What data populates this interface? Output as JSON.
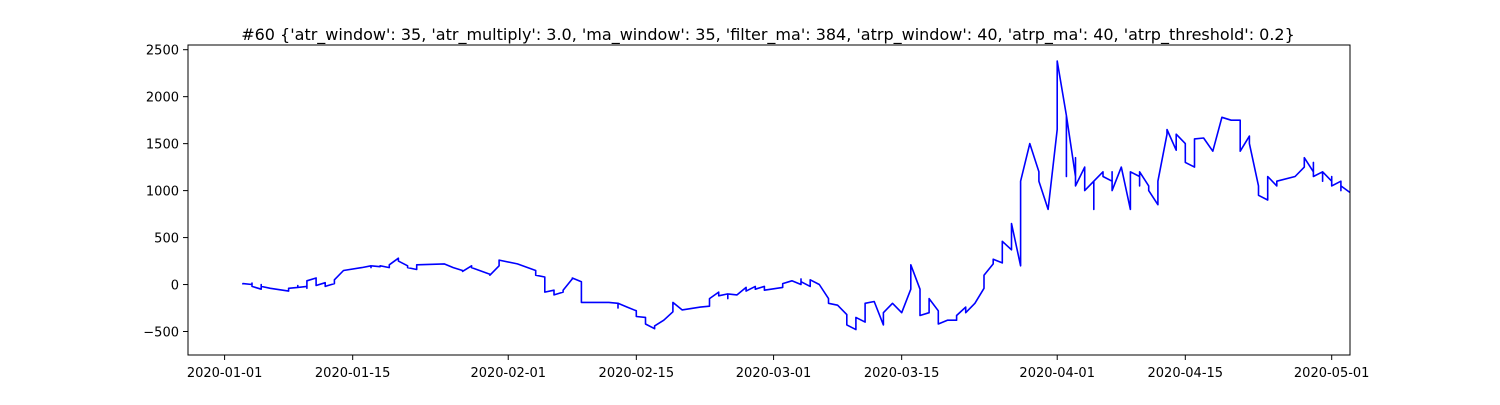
{
  "chart_data": {
    "type": "line",
    "title": "#60 {'atr_window': 35, 'atr_multiply': 3.0, 'ma_window': 35, 'filter_ma': 384, 'atrp_window': 40, 'atrp_ma': 40, 'atrp_threshold': 0.2}",
    "xlabel": "",
    "ylabel": "",
    "x_axis": "date",
    "xlim": [
      "2019-12-28",
      "2020-05-03"
    ],
    "ylim": [
      -750,
      2550
    ],
    "xticks": [
      "2020-01-01",
      "2020-01-15",
      "2020-02-01",
      "2020-02-15",
      "2020-03-01",
      "2020-03-15",
      "2020-04-01",
      "2020-04-15",
      "2020-05-01"
    ],
    "yticks": [
      -500,
      0,
      500,
      1000,
      1500,
      2000,
      2500
    ],
    "grid": false,
    "legend": "none",
    "series": [
      {
        "color": "#0000ff",
        "points": [
          [
            "2020-01-03",
            0
          ],
          [
            "2020-01-03",
            10
          ],
          [
            "2020-01-04",
            0
          ],
          [
            "2020-01-04",
            15
          ],
          [
            "2020-01-04",
            -20
          ],
          [
            "2020-01-05",
            -50
          ],
          [
            "2020-01-05",
            0
          ],
          [
            "2020-01-05",
            -20
          ],
          [
            "2020-01-06",
            -40
          ],
          [
            "2020-01-08",
            -70
          ],
          [
            "2020-01-08",
            -40
          ],
          [
            "2020-01-09",
            -30
          ],
          [
            "2020-01-09",
            -10
          ],
          [
            "2020-01-09",
            -30
          ],
          [
            "2020-01-10",
            -20
          ],
          [
            "2020-01-10",
            -40
          ],
          [
            "2020-01-10",
            20
          ],
          [
            "2020-01-10",
            40
          ],
          [
            "2020-01-11",
            70
          ],
          [
            "2020-01-11",
            -10
          ],
          [
            "2020-01-12",
            20
          ],
          [
            "2020-01-12",
            -20
          ],
          [
            "2020-01-13",
            10
          ],
          [
            "2020-01-13",
            50
          ],
          [
            "2020-01-14",
            150
          ],
          [
            "2020-01-16",
            180
          ],
          [
            "2020-01-17",
            200
          ],
          [
            "2020-01-17",
            180
          ],
          [
            "2020-01-17",
            200
          ],
          [
            "2020-01-18",
            190
          ],
          [
            "2020-01-18",
            200
          ],
          [
            "2020-01-19",
            180
          ],
          [
            "2020-01-19",
            210
          ],
          [
            "2020-01-20",
            280
          ],
          [
            "2020-01-20",
            250
          ],
          [
            "2020-01-21",
            200
          ],
          [
            "2020-01-21",
            180
          ],
          [
            "2020-01-22",
            160
          ],
          [
            "2020-01-22",
            210
          ],
          [
            "2020-01-25",
            220
          ],
          [
            "2020-01-26",
            180
          ],
          [
            "2020-01-27",
            150
          ],
          [
            "2020-01-27",
            140
          ],
          [
            "2020-01-28",
            200
          ],
          [
            "2020-01-28",
            180
          ],
          [
            "2020-01-30",
            110
          ],
          [
            "2020-01-30",
            100
          ],
          [
            "2020-01-31",
            200
          ],
          [
            "2020-01-31",
            260
          ],
          [
            "2020-02-02",
            220
          ],
          [
            "2020-02-04",
            150
          ],
          [
            "2020-02-04",
            100
          ],
          [
            "2020-02-05",
            80
          ],
          [
            "2020-02-05",
            -20
          ],
          [
            "2020-02-05",
            -80
          ],
          [
            "2020-02-06",
            -60
          ],
          [
            "2020-02-06",
            -110
          ],
          [
            "2020-02-07",
            -80
          ],
          [
            "2020-02-07",
            -60
          ],
          [
            "2020-02-08",
            60
          ],
          [
            "2020-02-08",
            70
          ],
          [
            "2020-02-09",
            30
          ],
          [
            "2020-02-09",
            -80
          ],
          [
            "2020-02-09",
            -190
          ],
          [
            "2020-02-12",
            -190
          ],
          [
            "2020-02-13",
            -200
          ],
          [
            "2020-02-13",
            -250
          ],
          [
            "2020-02-13",
            -200
          ],
          [
            "2020-02-14",
            -240
          ],
          [
            "2020-02-15",
            -280
          ],
          [
            "2020-02-15",
            -300
          ],
          [
            "2020-02-15",
            -340
          ],
          [
            "2020-02-16",
            -350
          ],
          [
            "2020-02-16",
            -420
          ],
          [
            "2020-02-17",
            -470
          ],
          [
            "2020-02-17",
            -440
          ],
          [
            "2020-02-18",
            -380
          ],
          [
            "2020-02-19",
            -290
          ],
          [
            "2020-02-19",
            -190
          ],
          [
            "2020-02-20",
            -270
          ],
          [
            "2020-02-22",
            -240
          ],
          [
            "2020-02-23",
            -230
          ],
          [
            "2020-02-23",
            -150
          ],
          [
            "2020-02-24",
            -80
          ],
          [
            "2020-02-24",
            -120
          ],
          [
            "2020-02-25",
            -100
          ],
          [
            "2020-02-25",
            -150
          ],
          [
            "2020-02-25",
            -100
          ],
          [
            "2020-02-26",
            -110
          ],
          [
            "2020-02-27",
            -30
          ],
          [
            "2020-02-27",
            -70
          ],
          [
            "2020-02-28",
            -20
          ],
          [
            "2020-02-28",
            -50
          ],
          [
            "2020-02-29",
            -20
          ],
          [
            "2020-02-29",
            -60
          ],
          [
            "2020-03-02",
            -30
          ],
          [
            "2020-03-02",
            10
          ],
          [
            "2020-03-03",
            40
          ],
          [
            "2020-03-04",
            0
          ],
          [
            "2020-03-04",
            60
          ],
          [
            "2020-03-04",
            30
          ],
          [
            "2020-03-05",
            -20
          ],
          [
            "2020-03-05",
            50
          ],
          [
            "2020-03-06",
            0
          ],
          [
            "2020-03-07",
            -150
          ],
          [
            "2020-03-07",
            -200
          ],
          [
            "2020-03-08",
            -220
          ],
          [
            "2020-03-09",
            -320
          ],
          [
            "2020-03-09",
            -430
          ],
          [
            "2020-03-10",
            -480
          ],
          [
            "2020-03-10",
            -350
          ],
          [
            "2020-03-11",
            -400
          ],
          [
            "2020-03-11",
            -200
          ],
          [
            "2020-03-12",
            -180
          ],
          [
            "2020-03-13",
            -430
          ],
          [
            "2020-03-13",
            -300
          ],
          [
            "2020-03-14",
            -200
          ],
          [
            "2020-03-15",
            -300
          ],
          [
            "2020-03-16",
            -50
          ],
          [
            "2020-03-16",
            210
          ],
          [
            "2020-03-17",
            -50
          ],
          [
            "2020-03-17",
            -330
          ],
          [
            "2020-03-18",
            -300
          ],
          [
            "2020-03-18",
            -200
          ],
          [
            "2020-03-18",
            -150
          ],
          [
            "2020-03-19",
            -280
          ],
          [
            "2020-03-19",
            -300
          ],
          [
            "2020-03-19",
            -420
          ],
          [
            "2020-03-20",
            -380
          ],
          [
            "2020-03-21",
            -380
          ],
          [
            "2020-03-21",
            -330
          ],
          [
            "2020-03-22",
            -240
          ],
          [
            "2020-03-22",
            -300
          ],
          [
            "2020-03-23",
            -200
          ],
          [
            "2020-03-24",
            -40
          ],
          [
            "2020-03-24",
            100
          ],
          [
            "2020-03-25",
            220
          ],
          [
            "2020-03-25",
            270
          ],
          [
            "2020-03-26",
            230
          ],
          [
            "2020-03-26",
            460
          ],
          [
            "2020-03-27",
            370
          ],
          [
            "2020-03-27",
            580
          ],
          [
            "2020-03-27",
            650
          ],
          [
            "2020-03-28",
            200
          ],
          [
            "2020-03-28",
            820
          ],
          [
            "2020-03-28",
            1100
          ],
          [
            "2020-03-29",
            1500
          ],
          [
            "2020-03-30",
            1200
          ],
          [
            "2020-03-30",
            1100
          ],
          [
            "2020-03-31",
            800
          ],
          [
            "2020-04-01",
            1650
          ],
          [
            "2020-04-01",
            2350
          ],
          [
            "2020-04-01",
            2380
          ],
          [
            "2020-04-02",
            1800
          ],
          [
            "2020-04-02",
            1150
          ],
          [
            "2020-04-02",
            1800
          ],
          [
            "2020-04-03",
            1150
          ],
          [
            "2020-04-03",
            1350
          ],
          [
            "2020-04-03",
            1050
          ],
          [
            "2020-04-04",
            1250
          ],
          [
            "2020-04-04",
            1000
          ],
          [
            "2020-04-05",
            1100
          ],
          [
            "2020-04-05",
            800
          ],
          [
            "2020-04-05",
            1100
          ],
          [
            "2020-04-06",
            1200
          ],
          [
            "2020-04-06",
            1150
          ],
          [
            "2020-04-07",
            1100
          ],
          [
            "2020-04-07",
            1200
          ],
          [
            "2020-04-07",
            1000
          ],
          [
            "2020-04-08",
            1250
          ],
          [
            "2020-04-09",
            800
          ],
          [
            "2020-04-09",
            1200
          ],
          [
            "2020-04-10",
            1150
          ],
          [
            "2020-04-10",
            1050
          ],
          [
            "2020-04-10",
            1200
          ],
          [
            "2020-04-11",
            1050
          ],
          [
            "2020-04-11",
            1000
          ],
          [
            "2020-04-12",
            850
          ],
          [
            "2020-04-12",
            1100
          ],
          [
            "2020-04-13",
            1600
          ],
          [
            "2020-04-13",
            1650
          ],
          [
            "2020-04-14",
            1430
          ],
          [
            "2020-04-14",
            1600
          ],
          [
            "2020-04-15",
            1500
          ],
          [
            "2020-04-15",
            1300
          ],
          [
            "2020-04-16",
            1250
          ],
          [
            "2020-04-16",
            1550
          ],
          [
            "2020-04-17",
            1560
          ],
          [
            "2020-04-18",
            1420
          ],
          [
            "2020-04-19",
            1780
          ],
          [
            "2020-04-20",
            1750
          ],
          [
            "2020-04-21",
            1750
          ],
          [
            "2020-04-21",
            1580
          ],
          [
            "2020-04-21",
            1420
          ],
          [
            "2020-04-22",
            1580
          ],
          [
            "2020-04-22",
            1500
          ],
          [
            "2020-04-23",
            1050
          ],
          [
            "2020-04-23",
            950
          ],
          [
            "2020-04-24",
            900
          ],
          [
            "2020-04-24",
            1150
          ],
          [
            "2020-04-25",
            1050
          ],
          [
            "2020-04-25",
            1100
          ],
          [
            "2020-04-27",
            1150
          ],
          [
            "2020-04-28",
            1250
          ],
          [
            "2020-04-28",
            1350
          ],
          [
            "2020-04-29",
            1200
          ],
          [
            "2020-04-29",
            1300
          ],
          [
            "2020-04-29",
            1150
          ],
          [
            "2020-04-30",
            1200
          ],
          [
            "2020-04-30",
            1100
          ],
          [
            "2020-04-30",
            1200
          ],
          [
            "2020-05-01",
            1100
          ],
          [
            "2020-05-01",
            1150
          ],
          [
            "2020-05-01",
            1050
          ],
          [
            "2020-05-02",
            1100
          ],
          [
            "2020-05-02",
            1000
          ],
          [
            "2020-05-02",
            1050
          ],
          [
            "2020-05-03",
            980
          ]
        ]
      }
    ]
  }
}
